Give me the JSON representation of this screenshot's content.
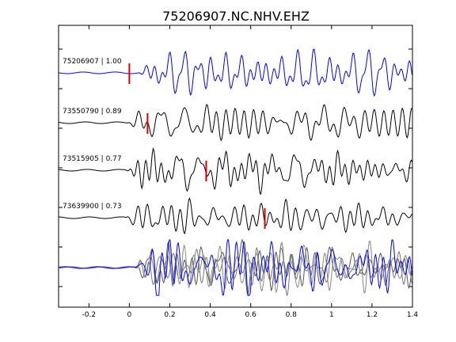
{
  "chart_data": {
    "type": "line",
    "title": "75206907.NC.NHV.EHZ",
    "xlim": [
      -0.35,
      1.4
    ],
    "x_ticks": [
      -0.2,
      0,
      0.2,
      0.4,
      0.6,
      0.8,
      1,
      1.2,
      1.4
    ],
    "x_tick_labels": [
      "-0.2",
      "0",
      "0.2",
      "0.4",
      "0.6",
      "0.8",
      "1",
      "1.2",
      "1.4"
    ],
    "grid": false,
    "traces": [
      {
        "label": "75206907 | 1.00",
        "color": "#0000ff",
        "pick_time": 0.0
      },
      {
        "label": "73550790 | 0.89",
        "color": "#000000",
        "pick_time": 0.09
      },
      {
        "label": "73515905 | 0.77",
        "color": "#000000",
        "pick_time": 0.38
      },
      {
        "label": "73639900 | 0.73",
        "color": "#000000",
        "pick_time": 0.67
      }
    ],
    "stack": {
      "colors": [
        "#555555",
        "#777777",
        "#888888",
        "#0000ff"
      ]
    },
    "pick_color": "#dd0000"
  }
}
